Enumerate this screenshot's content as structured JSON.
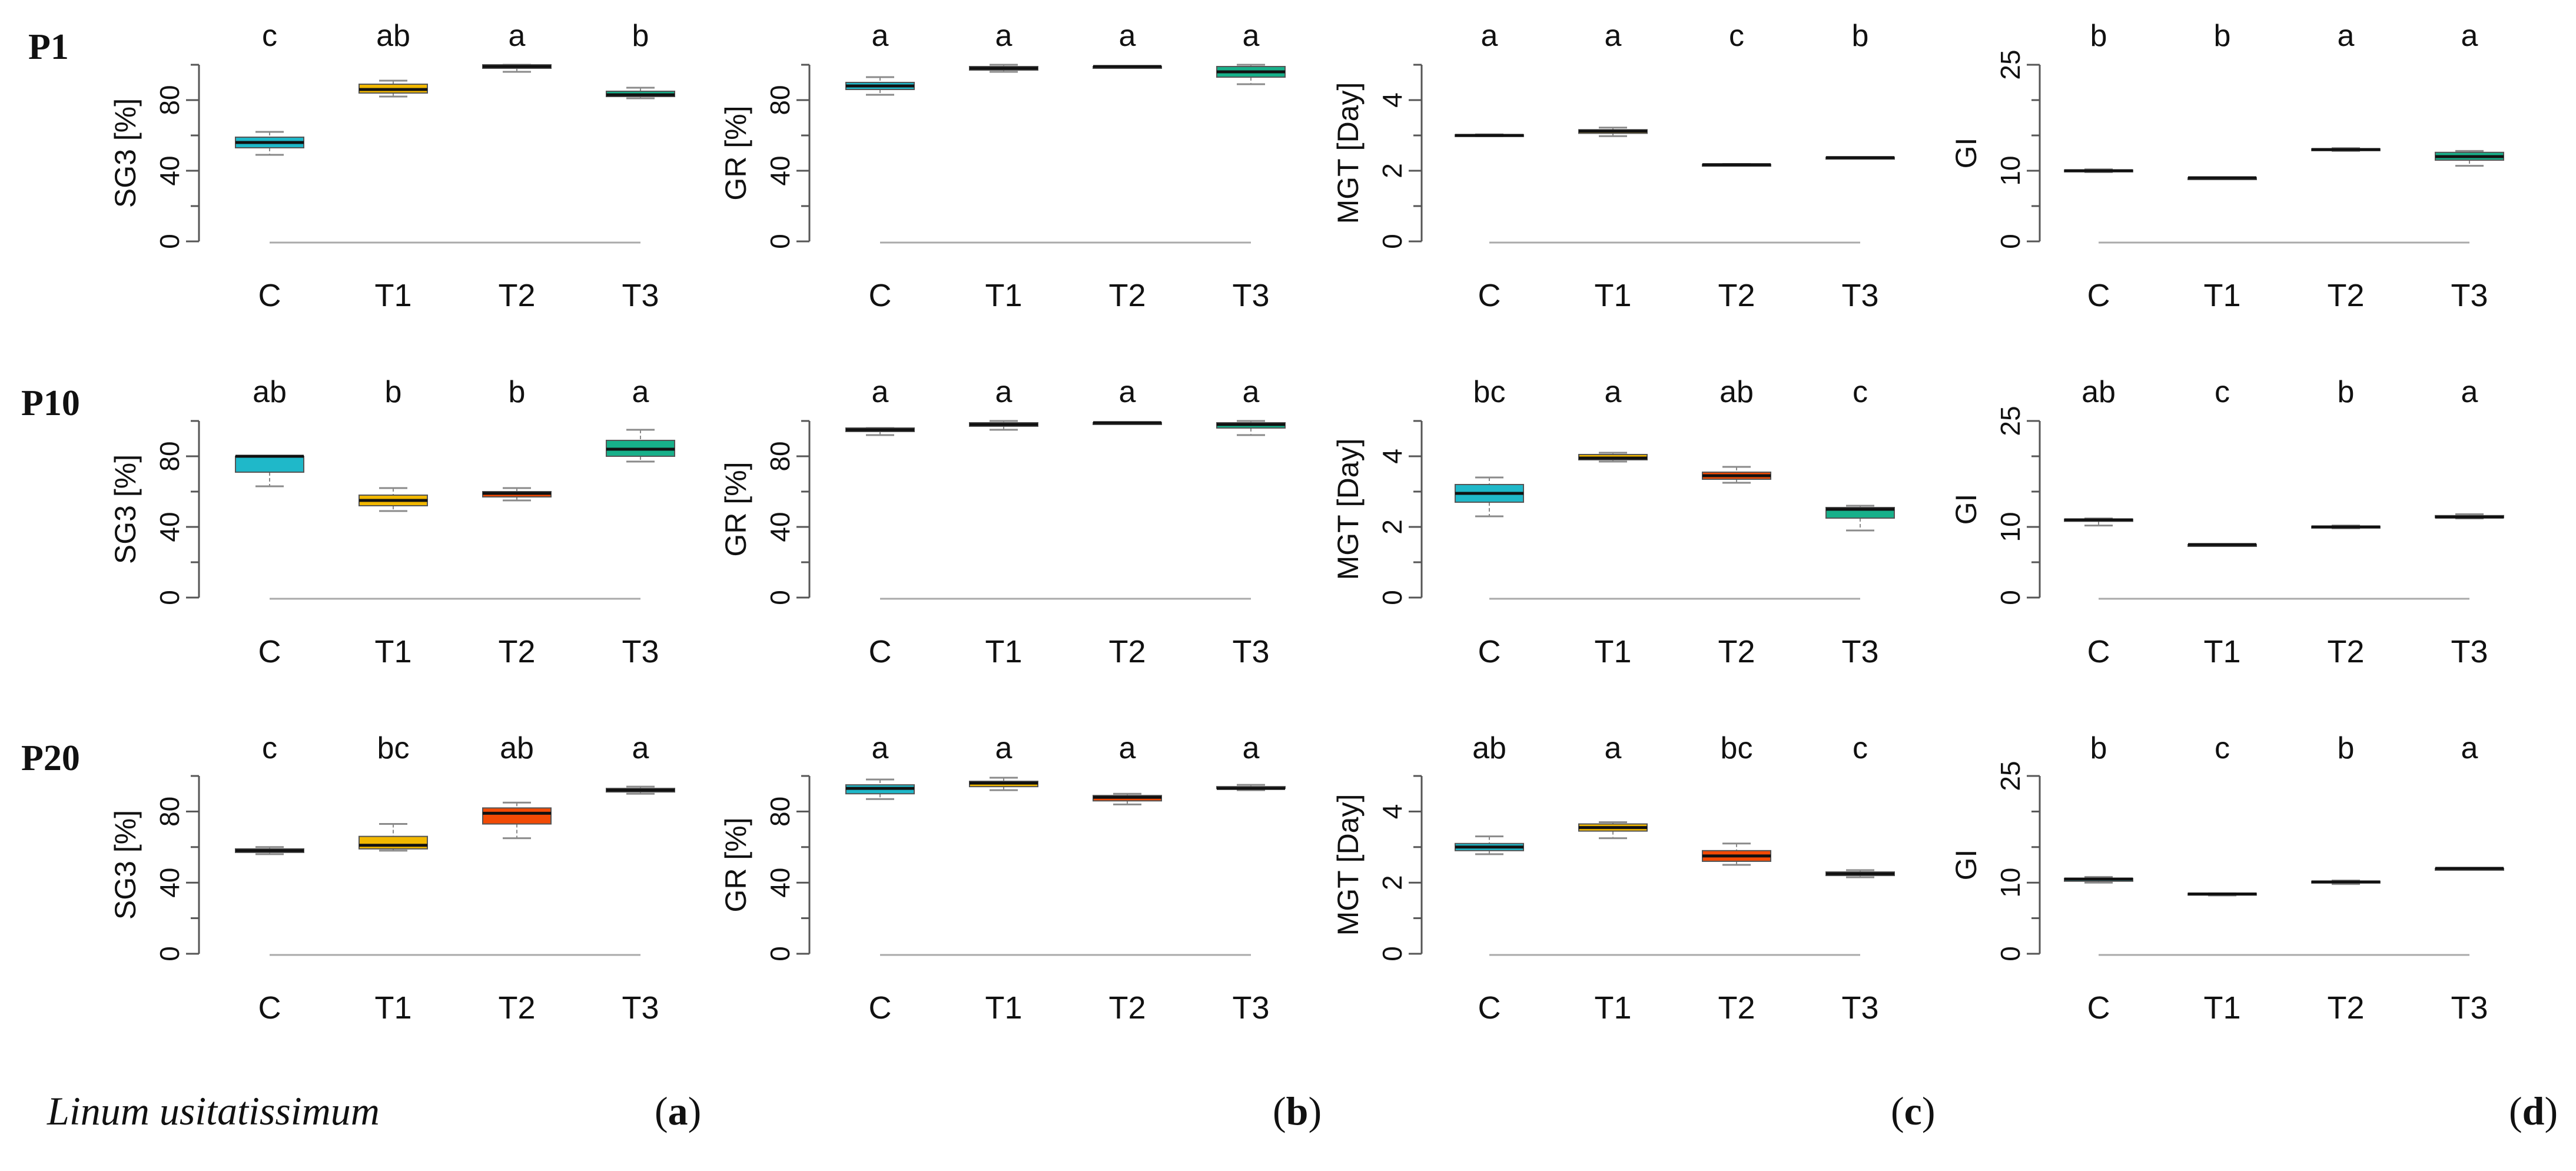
{
  "figure": {
    "species": "Linum usitatissimum",
    "panels": [
      "a",
      "b",
      "c",
      "d"
    ],
    "rows": [
      "P1",
      "P10",
      "P20"
    ],
    "categories": [
      "C",
      "T1",
      "T2",
      "T3"
    ],
    "colors": {
      "C": "#1FB8C9",
      "T1": "#F2B800",
      "T2": "#F24A05",
      "T3": "#17B08A"
    }
  },
  "chart_data": [
    {
      "type": "box",
      "row": "P1",
      "panel": "a",
      "ylabel": "SG3 [%]",
      "categories": [
        "C",
        "T1",
        "T2",
        "T3"
      ],
      "ylim": [
        0,
        100
      ],
      "ticks": [
        0,
        40,
        80
      ],
      "minor_ticks": [
        20,
        60,
        100
      ],
      "boxes": [
        {
          "min": 49,
          "q1": 53,
          "median": 56,
          "q3": 59,
          "max": 62
        },
        {
          "min": 82,
          "q1": 84,
          "median": 86,
          "q3": 89,
          "max": 91
        },
        {
          "min": 96,
          "q1": 98,
          "median": 99,
          "q3": 100,
          "max": 100
        },
        {
          "min": 81,
          "q1": 82,
          "median": 83,
          "q3": 85,
          "max": 87
        }
      ],
      "letters": [
        "c",
        "ab",
        "a",
        "b"
      ]
    },
    {
      "type": "box",
      "row": "P1",
      "panel": "b",
      "ylabel": "GR [%]",
      "categories": [
        "C",
        "T1",
        "T2",
        "T3"
      ],
      "ylim": [
        0,
        100
      ],
      "ticks": [
        0,
        40,
        80
      ],
      "minor_ticks": [
        20,
        60,
        100
      ],
      "boxes": [
        {
          "min": 83,
          "q1": 86,
          "median": 88,
          "q3": 90,
          "max": 93
        },
        {
          "min": 96,
          "q1": 97,
          "median": 98,
          "q3": 99,
          "max": 100
        },
        {
          "min": 99,
          "q1": 99,
          "median": 99,
          "q3": 99,
          "max": 99
        },
        {
          "min": 89,
          "q1": 93,
          "median": 96,
          "q3": 99,
          "max": 100
        }
      ],
      "letters": [
        "a",
        "a",
        "a",
        "a"
      ]
    },
    {
      "type": "box",
      "row": "P1",
      "panel": "c",
      "ylabel": "MGT [Day]",
      "categories": [
        "C",
        "T1",
        "T2",
        "T3"
      ],
      "ylim": [
        0,
        5
      ],
      "ticks": [
        0,
        2,
        4
      ],
      "minor_ticks": [
        1,
        3,
        5
      ],
      "boxes": [
        {
          "min": 2.98,
          "q1": 2.99,
          "median": 3.0,
          "q3": 3.02,
          "max": 3.03
        },
        {
          "min": 2.98,
          "q1": 3.06,
          "median": 3.12,
          "q3": 3.16,
          "max": 3.22
        },
        {
          "min": 2.15,
          "q1": 2.16,
          "median": 2.17,
          "q3": 2.18,
          "max": 2.19
        },
        {
          "min": 2.36,
          "q1": 2.37,
          "median": 2.37,
          "q3": 2.38,
          "max": 2.38
        }
      ],
      "letters": [
        "a",
        "a",
        "c",
        "b"
      ]
    },
    {
      "type": "box",
      "row": "P1",
      "panel": "d",
      "ylabel": "GI",
      "categories": [
        "C",
        "T1",
        "T2",
        "T3"
      ],
      "ylim": [
        0,
        25
      ],
      "ticks": [
        0,
        10,
        25
      ],
      "minor_ticks": [
        5,
        15,
        20
      ],
      "boxes": [
        {
          "min": 9.8,
          "q1": 9.9,
          "median": 10.0,
          "q3": 10.1,
          "max": 10.2
        },
        {
          "min": 8.9,
          "q1": 8.9,
          "median": 9.0,
          "q3": 9.0,
          "max": 9.0
        },
        {
          "min": 12.8,
          "q1": 12.9,
          "median": 13.0,
          "q3": 13.1,
          "max": 13.2
        },
        {
          "min": 10.7,
          "q1": 11.5,
          "median": 12.0,
          "q3": 12.6,
          "max": 12.8
        }
      ],
      "letters": [
        "b",
        "b",
        "a",
        "a"
      ]
    },
    {
      "type": "box",
      "row": "P10",
      "panel": "a",
      "ylabel": "SG3 [%]",
      "categories": [
        "C",
        "T1",
        "T2",
        "T3"
      ],
      "ylim": [
        0,
        100
      ],
      "ticks": [
        0,
        40,
        80
      ],
      "minor_ticks": [
        20,
        60,
        100
      ],
      "boxes": [
        {
          "min": 63,
          "q1": 71,
          "median": 80,
          "q3": 80,
          "max": 80
        },
        {
          "min": 49,
          "q1": 52,
          "median": 55,
          "q3": 58,
          "max": 62
        },
        {
          "min": 55,
          "q1": 57,
          "median": 59,
          "q3": 60,
          "max": 62
        },
        {
          "min": 77,
          "q1": 80,
          "median": 84,
          "q3": 89,
          "max": 95
        }
      ],
      "letters": [
        "ab",
        "b",
        "b",
        "a"
      ]
    },
    {
      "type": "box",
      "row": "P10",
      "panel": "b",
      "ylabel": "GR [%]",
      "categories": [
        "C",
        "T1",
        "T2",
        "T3"
      ],
      "ylim": [
        0,
        100
      ],
      "ticks": [
        0,
        40,
        80
      ],
      "minor_ticks": [
        20,
        60,
        100
      ],
      "boxes": [
        {
          "min": 92,
          "q1": 94,
          "median": 95,
          "q3": 96,
          "max": 96
        },
        {
          "min": 95,
          "q1": 97,
          "median": 98,
          "q3": 99,
          "max": 100
        },
        {
          "min": 99,
          "q1": 99,
          "median": 99,
          "q3": 99,
          "max": 99
        },
        {
          "min": 92,
          "q1": 96,
          "median": 98,
          "q3": 99,
          "max": 100
        }
      ],
      "letters": [
        "a",
        "a",
        "a",
        "a"
      ]
    },
    {
      "type": "box",
      "row": "P10",
      "panel": "c",
      "ylabel": "MGT [Day]",
      "categories": [
        "C",
        "T1",
        "T2",
        "T3"
      ],
      "ylim": [
        0,
        5
      ],
      "ticks": [
        0,
        2,
        4
      ],
      "minor_ticks": [
        1,
        3,
        5
      ],
      "boxes": [
        {
          "min": 2.3,
          "q1": 2.7,
          "median": 2.95,
          "q3": 3.2,
          "max": 3.4
        },
        {
          "min": 3.85,
          "q1": 3.9,
          "median": 3.95,
          "q3": 4.05,
          "max": 4.1
        },
        {
          "min": 3.25,
          "q1": 3.35,
          "median": 3.45,
          "q3": 3.55,
          "max": 3.7
        },
        {
          "min": 1.9,
          "q1": 2.25,
          "median": 2.5,
          "q3": 2.55,
          "max": 2.6
        }
      ],
      "letters": [
        "bc",
        "a",
        "ab",
        "c"
      ]
    },
    {
      "type": "box",
      "row": "P10",
      "panel": "d",
      "ylabel": "GI",
      "categories": [
        "C",
        "T1",
        "T2",
        "T3"
      ],
      "ylim": [
        0,
        25
      ],
      "ticks": [
        0,
        10,
        25
      ],
      "minor_ticks": [
        5,
        15,
        20
      ],
      "boxes": [
        {
          "min": 10.2,
          "q1": 10.8,
          "median": 11.0,
          "q3": 11.1,
          "max": 11.2
        },
        {
          "min": 7.4,
          "q1": 7.4,
          "median": 7.5,
          "q3": 7.5,
          "max": 7.5
        },
        {
          "min": 9.8,
          "q1": 9.9,
          "median": 10.0,
          "q3": 10.1,
          "max": 10.2
        },
        {
          "min": 11.2,
          "q1": 11.3,
          "median": 11.4,
          "q3": 11.6,
          "max": 11.8
        }
      ],
      "letters": [
        "ab",
        "c",
        "b",
        "a"
      ]
    },
    {
      "type": "box",
      "row": "P20",
      "panel": "a",
      "ylabel": "SG3 [%]",
      "categories": [
        "C",
        "T1",
        "T2",
        "T3"
      ],
      "ylim": [
        0,
        100
      ],
      "ticks": [
        0,
        40,
        80
      ],
      "minor_ticks": [
        20,
        60,
        100
      ],
      "boxes": [
        {
          "min": 56,
          "q1": 57,
          "median": 58,
          "q3": 59,
          "max": 60
        },
        {
          "min": 58,
          "q1": 59,
          "median": 61,
          "q3": 66,
          "max": 73
        },
        {
          "min": 65,
          "q1": 73,
          "median": 79,
          "q3": 82,
          "max": 85
        },
        {
          "min": 90,
          "q1": 91,
          "median": 92,
          "q3": 93,
          "max": 94
        }
      ],
      "letters": [
        "c",
        "bc",
        "ab",
        "a"
      ]
    },
    {
      "type": "box",
      "row": "P20",
      "panel": "b",
      "ylabel": "GR [%]",
      "categories": [
        "C",
        "T1",
        "T2",
        "T3"
      ],
      "ylim": [
        0,
        100
      ],
      "ticks": [
        0,
        40,
        80
      ],
      "minor_ticks": [
        20,
        60,
        100
      ],
      "boxes": [
        {
          "min": 87,
          "q1": 90,
          "median": 93,
          "q3": 95,
          "max": 98
        },
        {
          "min": 92,
          "q1": 94,
          "median": 96,
          "q3": 97,
          "max": 99
        },
        {
          "min": 84,
          "q1": 86,
          "median": 88,
          "q3": 89,
          "max": 90
        },
        {
          "min": 92,
          "q1": 93,
          "median": 93,
          "q3": 94,
          "max": 95
        }
      ],
      "letters": [
        "a",
        "a",
        "a",
        "a"
      ]
    },
    {
      "type": "box",
      "row": "P20",
      "panel": "c",
      "ylabel": "MGT [Day]",
      "categories": [
        "C",
        "T1",
        "T2",
        "T3"
      ],
      "ylim": [
        0,
        5
      ],
      "ticks": [
        0,
        2,
        4
      ],
      "minor_ticks": [
        1,
        3,
        5
      ],
      "boxes": [
        {
          "min": 2.8,
          "q1": 2.9,
          "median": 3.0,
          "q3": 3.1,
          "max": 3.3
        },
        {
          "min": 3.25,
          "q1": 3.45,
          "median": 3.55,
          "q3": 3.65,
          "max": 3.7
        },
        {
          "min": 2.5,
          "q1": 2.6,
          "median": 2.75,
          "q3": 2.9,
          "max": 3.1
        },
        {
          "min": 2.15,
          "q1": 2.2,
          "median": 2.25,
          "q3": 2.3,
          "max": 2.35
        }
      ],
      "letters": [
        "ab",
        "a",
        "bc",
        "c"
      ]
    },
    {
      "type": "box",
      "row": "P20",
      "panel": "d",
      "ylabel": "GI",
      "categories": [
        "C",
        "T1",
        "T2",
        "T3"
      ],
      "ylim": [
        0,
        25
      ],
      "ticks": [
        0,
        10,
        25
      ],
      "minor_ticks": [
        5,
        15,
        20
      ],
      "boxes": [
        {
          "min": 10.0,
          "q1": 10.2,
          "median": 10.5,
          "q3": 10.6,
          "max": 10.8
        },
        {
          "min": 8.2,
          "q1": 8.3,
          "median": 8.4,
          "q3": 8.5,
          "max": 8.5
        },
        {
          "min": 9.8,
          "q1": 10.0,
          "median": 10.1,
          "q3": 10.2,
          "max": 10.3
        },
        {
          "min": 12.0,
          "q1": 12.0,
          "median": 12.0,
          "q3": 12.0,
          "max": 12.0
        }
      ],
      "letters": [
        "b",
        "c",
        "b",
        "a"
      ]
    }
  ]
}
